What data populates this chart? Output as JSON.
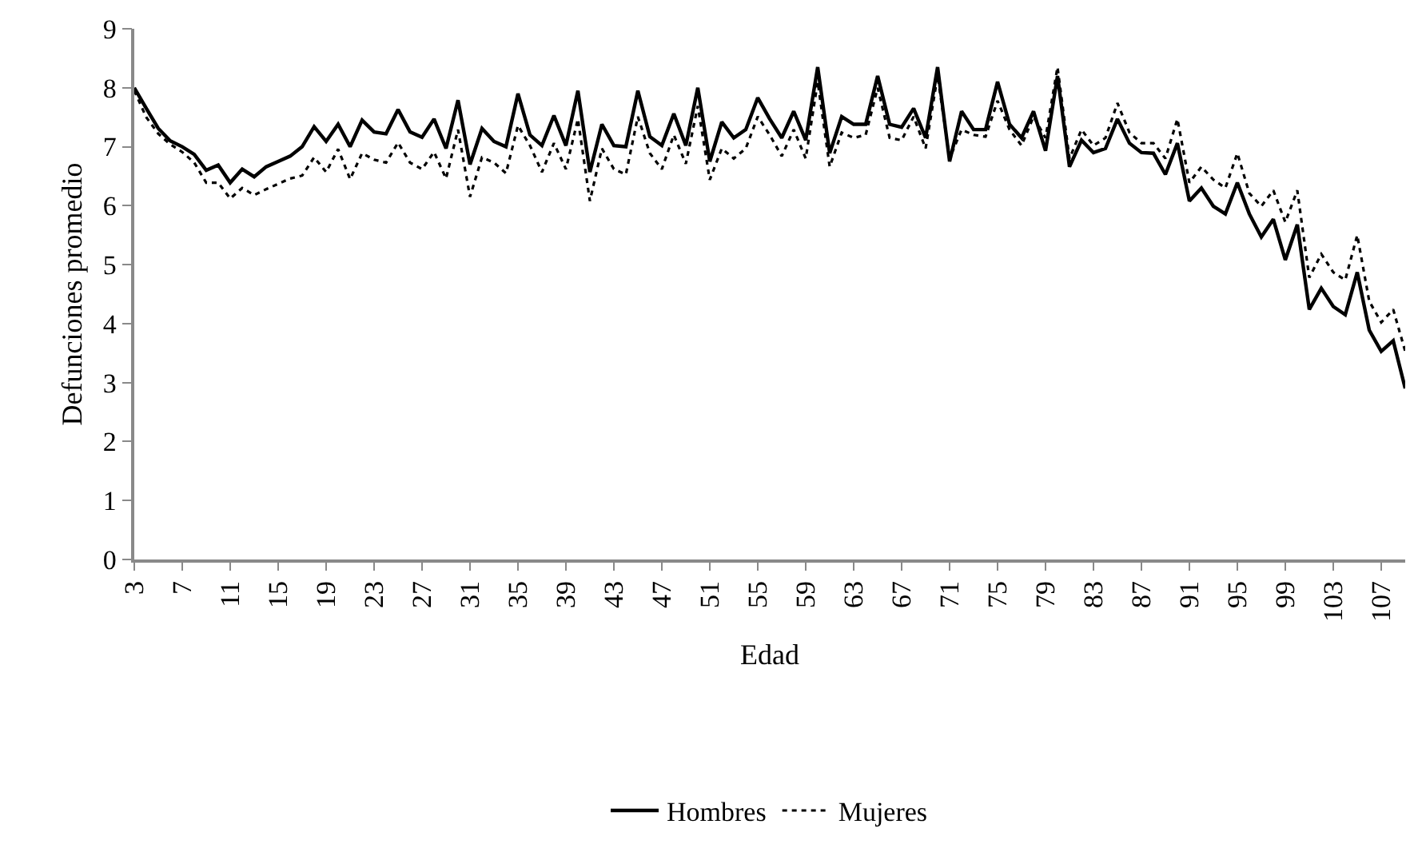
{
  "chart_data": {
    "type": "line",
    "xlabel": "Edad",
    "ylabel": "Defunciones promedio",
    "categories": [
      "3",
      null,
      null,
      null,
      "7",
      null,
      null,
      null,
      "11",
      null,
      null,
      null,
      "15",
      null,
      null,
      null,
      "19",
      null,
      null,
      null,
      "23",
      null,
      null,
      null,
      "27",
      null,
      null,
      null,
      "31",
      null,
      null,
      null,
      "35",
      null,
      null,
      null,
      "39",
      null,
      null,
      null,
      "43",
      null,
      null,
      null,
      "47",
      null,
      null,
      null,
      "51",
      null,
      null,
      null,
      "55",
      null,
      null,
      null,
      "59",
      null,
      null,
      null,
      "63",
      null,
      null,
      null,
      "67",
      null,
      null,
      null,
      "71",
      null,
      null,
      null,
      "75",
      null,
      null,
      null,
      "79",
      null,
      null,
      null,
      "83",
      null,
      null,
      null,
      "87",
      null,
      null,
      null,
      "91",
      null,
      null,
      null,
      "95",
      null,
      null,
      null,
      "99",
      null,
      null,
      null,
      "103",
      null,
      null,
      null,
      "107",
      null,
      null
    ],
    "ylim": [
      0,
      9
    ],
    "yticks": [
      0,
      1,
      2,
      3,
      4,
      5,
      6,
      7,
      8,
      9
    ],
    "grid": false,
    "legend": "bottom",
    "marker": "none",
    "series": [
      {
        "name": "Hombres",
        "color": "#000000",
        "line_style": "solid",
        "values": [
          8.0,
          7.65,
          7.31,
          7.1,
          7.0,
          6.87,
          6.6,
          6.69,
          6.39,
          6.62,
          6.49,
          6.66,
          6.75,
          6.84,
          7.0,
          7.34,
          7.09,
          7.38,
          7.0,
          7.45,
          7.25,
          7.22,
          7.63,
          7.25,
          7.16,
          7.47,
          6.97,
          7.79,
          6.7,
          7.31,
          7.09,
          7.0,
          7.9,
          7.2,
          7.02,
          7.53,
          7.02,
          7.95,
          6.57,
          7.38,
          7.02,
          7.0,
          7.95,
          7.17,
          7.02,
          7.56,
          7.02,
          8.0,
          6.75,
          7.42,
          7.15,
          7.29,
          7.83,
          7.47,
          7.15,
          7.6,
          7.11,
          8.35,
          6.89,
          7.51,
          7.38,
          7.38,
          8.2,
          7.38,
          7.33,
          7.65,
          7.15,
          8.35,
          6.75,
          7.6,
          7.29,
          7.29,
          8.1,
          7.38,
          7.15,
          7.6,
          6.93,
          8.2,
          6.66,
          7.11,
          6.9,
          6.97,
          7.47,
          7.06,
          6.9,
          6.89,
          6.53,
          7.06,
          6.08,
          6.3,
          5.99,
          5.86,
          6.39,
          5.86,
          5.47,
          5.77,
          5.08,
          5.68,
          4.24,
          4.6,
          4.29,
          4.15,
          4.87,
          3.89,
          3.53,
          3.71,
          2.9
        ]
      },
      {
        "name": "Mujeres",
        "color": "#000000",
        "line_style": "dotted",
        "values": [
          7.95,
          7.5,
          7.22,
          7.04,
          6.91,
          6.73,
          6.39,
          6.39,
          6.12,
          6.3,
          6.18,
          6.28,
          6.37,
          6.46,
          6.51,
          6.82,
          6.57,
          6.96,
          6.45,
          6.89,
          6.78,
          6.73,
          7.07,
          6.73,
          6.62,
          6.91,
          6.46,
          7.29,
          6.15,
          6.82,
          6.73,
          6.55,
          7.36,
          7.02,
          6.57,
          7.06,
          6.62,
          7.47,
          6.08,
          6.97,
          6.62,
          6.53,
          7.51,
          6.89,
          6.62,
          7.2,
          6.71,
          7.69,
          6.44,
          6.97,
          6.8,
          6.97,
          7.51,
          7.2,
          6.84,
          7.29,
          6.8,
          8.1,
          6.66,
          7.24,
          7.15,
          7.2,
          8.0,
          7.15,
          7.11,
          7.51,
          6.97,
          8.2,
          6.8,
          7.29,
          7.2,
          7.17,
          7.78,
          7.29,
          7.02,
          7.51,
          7.15,
          8.35,
          6.8,
          7.29,
          7.02,
          7.15,
          7.74,
          7.24,
          7.06,
          7.06,
          6.8,
          7.47,
          6.39,
          6.66,
          6.44,
          6.3,
          6.89,
          6.21,
          5.99,
          6.26,
          5.72,
          6.26,
          4.78,
          5.18,
          4.87,
          4.74,
          5.5,
          4.38,
          4.02,
          4.24,
          3.53
        ]
      }
    ]
  }
}
